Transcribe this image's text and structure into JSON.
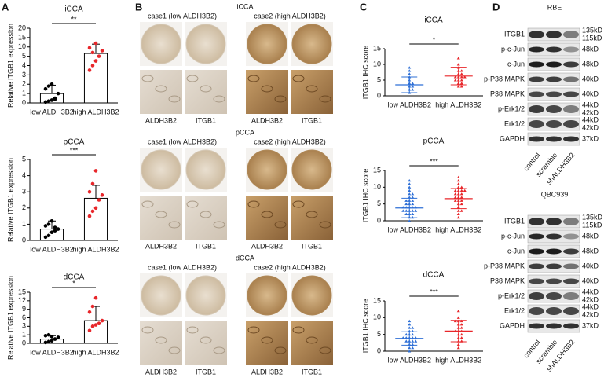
{
  "panel_letters": [
    "A",
    "B",
    "C",
    "D"
  ],
  "chart_data": [
    {
      "type": "bar-dot",
      "title": "iCCA",
      "y_label": "Relative ITGB1 expression",
      "categories": [
        "low ALDH3B2",
        "high ALDH3B2"
      ],
      "colors": [
        "#000000",
        "#e8262a"
      ],
      "means": [
        1,
        6.5
      ],
      "errors": [
        0.9,
        5
      ],
      "points": [
        [
          0.1,
          0.2,
          0.3,
          0.5,
          1.0,
          1.5,
          1.8,
          2.0,
          0.4
        ],
        [
          3.5,
          4,
          4.5,
          5,
          8,
          9.5,
          7,
          12
        ]
      ],
      "ylim": [
        0,
        20
      ],
      "yticks": [
        0,
        1,
        2,
        3,
        4,
        5,
        10,
        15,
        20
      ],
      "significance": "**"
    },
    {
      "type": "bar-dot",
      "title": "pCCA",
      "y_label": "Relative ITGB1 expression",
      "categories": [
        "low ALDH3B2",
        "high ALDH3B2"
      ],
      "colors": [
        "#000000",
        "#e8262a"
      ],
      "means": [
        0.7,
        2.6
      ],
      "errors": [
        0.5,
        0.8
      ],
      "points": [
        [
          0.2,
          0.3,
          0.5,
          0.6,
          0.7,
          0.9,
          1.0,
          1.2,
          0.8
        ],
        [
          1.5,
          1.8,
          2.0,
          2.5,
          2.8,
          3.0,
          3.5,
          4.3
        ]
      ],
      "ylim": [
        0,
        5
      ],
      "yticks": [
        0,
        1,
        2,
        3,
        4,
        5
      ],
      "significance": "***"
    },
    {
      "type": "bar-dot",
      "title": "dCCA",
      "y_label": "Relative ITGB1 expression",
      "categories": [
        "low ALDH3B2",
        "high ALDH3B2"
      ],
      "colors": [
        "#000000",
        "#e8262a"
      ],
      "means": [
        0.5,
        5
      ],
      "errors": [
        0.4,
        5
      ],
      "points": [
        [
          0.1,
          0.2,
          0.3,
          0.5,
          0.7,
          0.9,
          1.0,
          0.8
        ],
        [
          2,
          3,
          3.5,
          4,
          5,
          8,
          10,
          13
        ]
      ],
      "ylim": [
        0,
        15
      ],
      "yticks": [
        0,
        1,
        3,
        6,
        9,
        12,
        15
      ],
      "significance": "*"
    },
    {
      "type": "dot",
      "title": "iCCA",
      "y_label": "ITGB1 IHC score",
      "categories": [
        "low ALDH3B2",
        "high ALDH3B2"
      ],
      "colors": [
        "#2e6fd6",
        "#e8262a"
      ],
      "means": [
        3.5,
        6.3
      ],
      "errors": [
        2.5,
        2.8
      ],
      "points": [
        [
          1,
          2,
          2,
          3,
          3,
          4,
          4,
          5,
          6,
          7,
          8,
          9
        ],
        [
          3,
          4,
          4,
          5,
          5,
          6,
          6,
          6,
          7,
          7,
          8,
          8,
          9,
          10,
          12,
          3,
          5,
          6
        ]
      ],
      "ylim": [
        0,
        15
      ],
      "yticks": [
        0,
        5,
        10,
        15
      ],
      "significance": "*"
    },
    {
      "type": "dot",
      "title": "pCCA",
      "y_label": "ITGB1 IHC score",
      "categories": [
        "low ALDH3B2",
        "high ALDH3B2"
      ],
      "colors": [
        "#2e6fd6",
        "#e8262a"
      ],
      "means": [
        3.8,
        6.6
      ],
      "errors": [
        2.9,
        3
      ],
      "points": [
        [
          0,
          1,
          1,
          2,
          2,
          2,
          3,
          3,
          3,
          3,
          3,
          4,
          4,
          4,
          4,
          4,
          5,
          5,
          5,
          6,
          6,
          6,
          7,
          7,
          8,
          8,
          9,
          10,
          11,
          12
        ],
        [
          1,
          2,
          3,
          3,
          4,
          5,
          5,
          6,
          6,
          6,
          7,
          7,
          7,
          8,
          8,
          8,
          9,
          9,
          9,
          9,
          10,
          10,
          11,
          12,
          13
        ]
      ],
      "ylim": [
        0,
        15
      ],
      "yticks": [
        0,
        5,
        10,
        15
      ],
      "significance": "***"
    },
    {
      "type": "dot",
      "title": "dCCA",
      "y_label": "ITGB1 IHC score",
      "categories": [
        "low ALDH3B2",
        "high ALDH3B2"
      ],
      "colors": [
        "#2e6fd6",
        "#e8262a"
      ],
      "means": [
        3.8,
        6
      ],
      "errors": [
        2,
        3.2
      ],
      "points": [
        [
          0,
          1,
          1,
          2,
          2,
          3,
          3,
          3,
          3,
          4,
          4,
          4,
          4,
          4,
          5,
          5,
          5,
          6,
          6,
          7,
          7,
          8,
          9
        ],
        [
          1,
          2,
          3,
          3,
          4,
          4,
          5,
          5,
          6,
          6,
          6,
          7,
          7,
          8,
          8,
          9,
          9,
          9,
          10,
          12
        ]
      ],
      "ylim": [
        0,
        15
      ],
      "yticks": [
        0,
        5,
        10,
        15
      ],
      "significance": "***"
    }
  ],
  "ihc": [
    {
      "title": "iCCA",
      "case1": "case1 (low ALDH3B2)",
      "case2": "case2 (high ALDH3B2)",
      "labels": [
        "ALDH3B2",
        "ITGB1",
        "ALDH3B2",
        "ITGB1"
      ]
    },
    {
      "title": "pCCA",
      "case1": "case1 (low ALDH3B2)",
      "case2": "case2 (high ALDH3B2)",
      "labels": [
        "ALDH3B2",
        "ITGB1",
        "ALDH3B2",
        "ITGB1"
      ]
    },
    {
      "title": "dCCA",
      "case1": "case1 (low ALDH3B2)",
      "case2": "case2 (high ALDH3B2)",
      "labels": [
        "ALDH3B2",
        "ITGB1",
        "ALDH3B2",
        "ITGB1"
      ]
    }
  ],
  "blots": [
    {
      "title": "RBE",
      "lanes": [
        "control",
        "scramble",
        "shALDH3B2"
      ],
      "rows": [
        {
          "label": "ITGB1",
          "sizes": [
            "135kD",
            "115kD"
          ]
        },
        {
          "label": "p-c-Jun",
          "sizes": [
            "48kD"
          ]
        },
        {
          "label": "c-Jun",
          "sizes": [
            "48kD"
          ]
        },
        {
          "label": "p-P38 MAPK",
          "sizes": [
            "40kD"
          ]
        },
        {
          "label": "P38 MAPK",
          "sizes": [
            "40kD"
          ]
        },
        {
          "label": "p-Erk1/2",
          "sizes": [
            "44kD",
            "42kD"
          ]
        },
        {
          "label": "Erk1/2",
          "sizes": [
            "44kD",
            "42kD"
          ]
        },
        {
          "label": "GAPDH",
          "sizes": [
            "37kD"
          ]
        }
      ]
    },
    {
      "title": "QBC939",
      "lanes": [
        "control",
        "scramble",
        "shALDH3B2"
      ],
      "rows": [
        {
          "label": "ITGB1",
          "sizes": [
            "135kD",
            "115kD"
          ]
        },
        {
          "label": "p-c-Jun",
          "sizes": [
            "48kD"
          ]
        },
        {
          "label": "c-Jun",
          "sizes": [
            "48kD"
          ]
        },
        {
          "label": "p-P38 MAPK",
          "sizes": [
            "40kD"
          ]
        },
        {
          "label": "P38 MAPK",
          "sizes": [
            "40kD"
          ]
        },
        {
          "label": "p-Erk1/2",
          "sizes": [
            "44kD",
            "42kD"
          ]
        },
        {
          "label": "Erk1/2",
          "sizes": [
            "44kD",
            "42kD"
          ]
        },
        {
          "label": "GAPDH",
          "sizes": [
            "37kD"
          ]
        }
      ]
    }
  ]
}
